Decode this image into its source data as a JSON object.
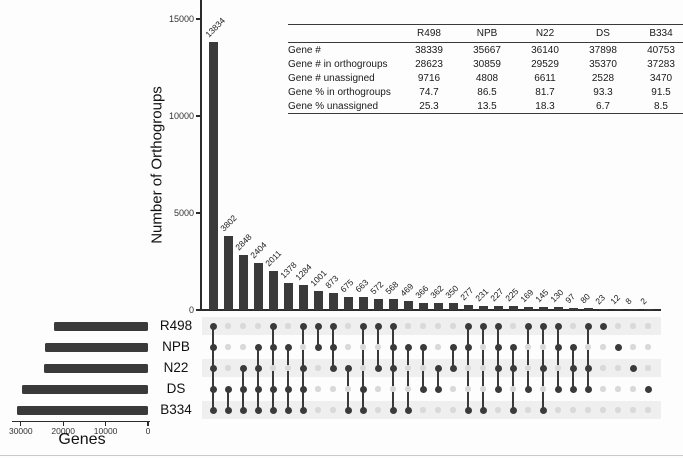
{
  "colors": {
    "bar": "#3a3a3a",
    "dot_filled": "#3a3a3a",
    "dot_empty": "#d9d9d9",
    "stripe": "#efefef",
    "axis": "#2b2b2b",
    "background": "#fdfdfd"
  },
  "chart_data": [
    {
      "type": "bar",
      "subtype": "upset-intersection-sizes",
      "title": "",
      "ylabel": "Number of Orthogroups",
      "ylim": [
        0,
        15500
      ],
      "yticks": [
        0,
        5000,
        10000,
        15000
      ],
      "grid": false,
      "sets": [
        "R498",
        "NPB",
        "N22",
        "DS",
        "B334"
      ],
      "intersections": [
        {
          "members": [
            "R498",
            "NPB",
            "N22",
            "DS",
            "B334"
          ],
          "value": 13834
        },
        {
          "members": [
            "DS",
            "B334"
          ],
          "value": 3802
        },
        {
          "members": [
            "N22",
            "DS",
            "B334"
          ],
          "value": 2848
        },
        {
          "members": [
            "NPB",
            "N22",
            "DS",
            "B334"
          ],
          "value": 2404
        },
        {
          "members": [
            "R498",
            "NPB",
            "DS",
            "B334"
          ],
          "value": 2011
        },
        {
          "members": [
            "NPB",
            "DS",
            "B334"
          ],
          "value": 1378
        },
        {
          "members": [
            "R498",
            "N22",
            "DS",
            "B334"
          ],
          "value": 1284
        },
        {
          "members": [
            "R498",
            "NPB"
          ],
          "value": 1001
        },
        {
          "members": [
            "R498",
            "NPB",
            "N22"
          ],
          "value": 873
        },
        {
          "members": [
            "N22",
            "B334"
          ],
          "value": 675
        },
        {
          "members": [
            "R498",
            "DS",
            "B334"
          ],
          "value": 663
        },
        {
          "members": [
            "R498",
            "N22"
          ],
          "value": 572
        },
        {
          "members": [
            "R498",
            "NPB",
            "N22",
            "B334"
          ],
          "value": 568
        },
        {
          "members": [
            "NPB",
            "B334"
          ],
          "value": 469
        },
        {
          "members": [
            "NPB",
            "DS"
          ],
          "value": 366
        },
        {
          "members": [
            "N22",
            "DS"
          ],
          "value": 362
        },
        {
          "members": [
            "NPB",
            "N22"
          ],
          "value": 350
        },
        {
          "members": [
            "R498",
            "NPB",
            "B334"
          ],
          "value": 277
        },
        {
          "members": [
            "R498",
            "B334"
          ],
          "value": 231
        },
        {
          "members": [
            "R498",
            "NPB",
            "N22",
            "DS"
          ],
          "value": 227
        },
        {
          "members": [
            "NPB",
            "N22",
            "B334"
          ],
          "value": 225
        },
        {
          "members": [
            "R498",
            "DS"
          ],
          "value": 169
        },
        {
          "members": [
            "R498",
            "N22",
            "B334"
          ],
          "value": 145
        },
        {
          "members": [
            "R498",
            "NPB",
            "DS"
          ],
          "value": 130
        },
        {
          "members": [
            "NPB",
            "N22",
            "DS"
          ],
          "value": 97
        },
        {
          "members": [
            "R498",
            "N22",
            "DS"
          ],
          "value": 80
        },
        {
          "members": [
            "R498"
          ],
          "value": 23
        },
        {
          "members": [
            "NPB"
          ],
          "value": 12
        },
        {
          "members": [
            "N22"
          ],
          "value": 8
        },
        {
          "members": [
            "DS"
          ],
          "value": 2
        }
      ]
    },
    {
      "type": "bar",
      "subtype": "upset-set-sizes",
      "orientation": "horizontal",
      "xlabel": "Genes",
      "xlim": [
        0,
        31500
      ],
      "xticks": [
        30000,
        20000,
        10000,
        0
      ],
      "categories": [
        "R498",
        "NPB",
        "N22",
        "DS",
        "B334"
      ],
      "values": [
        22088,
        24222,
        24552,
        29657,
        30814
      ]
    }
  ],
  "table": {
    "columns": [
      "R498",
      "NPB",
      "N22",
      "DS",
      "B334"
    ],
    "rows": [
      {
        "label": "Gene #",
        "values": [
          "38339",
          "35667",
          "36140",
          "37898",
          "40753"
        ]
      },
      {
        "label": "Gene # in orthogroups",
        "values": [
          "28623",
          "30859",
          "29529",
          "35370",
          "37283"
        ]
      },
      {
        "label": "Gene # unassigned",
        "values": [
          "9716",
          "4808",
          "6611",
          "2528",
          "3470"
        ]
      },
      {
        "label": "Gene % in orthogroups",
        "values": [
          "74.7",
          "86.5",
          "81.7",
          "93.3",
          "91.5"
        ]
      },
      {
        "label": "Gene % unassigned",
        "values": [
          "25.3",
          "13.5",
          "18.3",
          "6.7",
          "8.5"
        ]
      }
    ]
  }
}
